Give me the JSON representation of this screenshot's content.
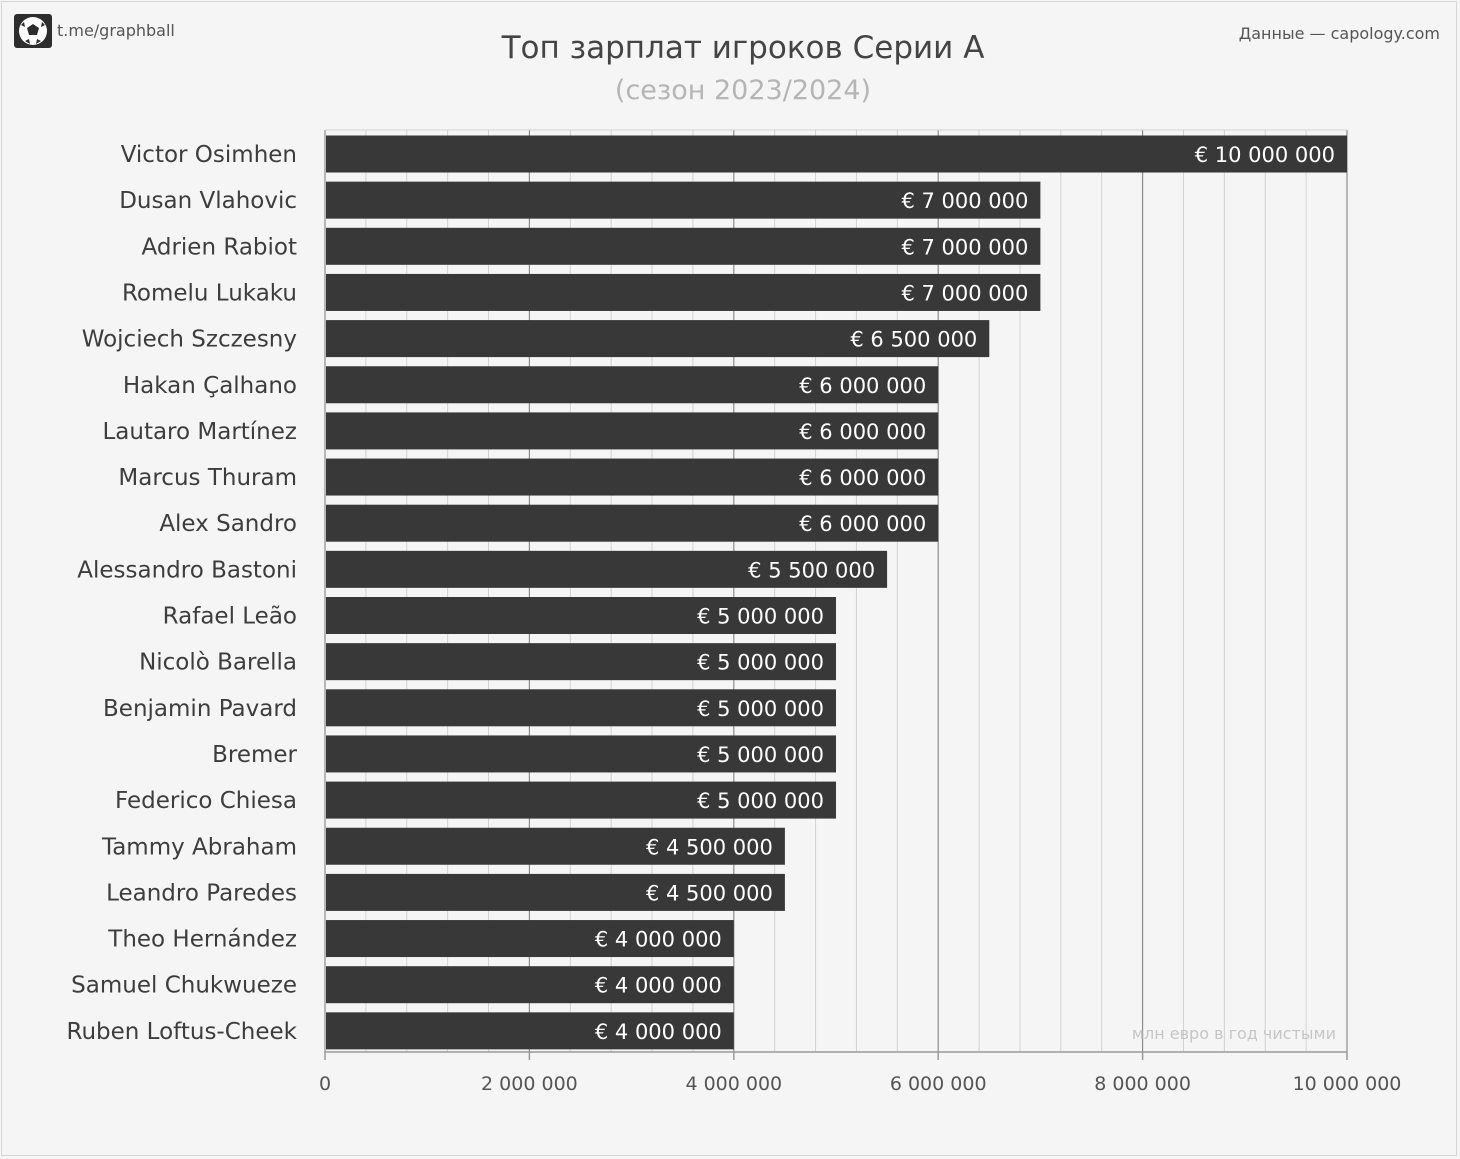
{
  "header": {
    "brand_link": "t.me/graphball",
    "source": "Данные — capology.com"
  },
  "chart_data": {
    "type": "bar",
    "orientation": "horizontal",
    "title": "Топ зарплат игроков Серии А",
    "subtitle": "(сезон 2023/2024)",
    "note": "млн евро в год чистыми",
    "categories": [
      "Victor Osimhen",
      "Dusan Vlahovic",
      "Adrien Rabiot",
      "Romelu Lukaku",
      "Wojciech Szczesny",
      "Hakan Çalhano",
      "Lautaro Martínez",
      "Marcus Thuram",
      "Alex Sandro",
      "Alessandro Bastoni",
      "Rafael Leão",
      "Nicolò Barella",
      "Benjamin Pavard",
      "Bremer",
      "Federico Chiesa",
      "Tammy Abraham",
      "Leandro Paredes",
      "Theo Hernández",
      "Samuel Chukwueze",
      "Ruben Loftus-Cheek"
    ],
    "values": [
      10000000,
      7000000,
      7000000,
      7000000,
      6500000,
      6000000,
      6000000,
      6000000,
      6000000,
      5500000,
      5000000,
      5000000,
      5000000,
      5000000,
      5000000,
      4500000,
      4500000,
      4000000,
      4000000,
      4000000
    ],
    "value_labels": [
      "€ 10 000 000",
      "€ 7 000 000",
      "€ 7 000 000",
      "€ 7 000 000",
      "€ 6 500 000",
      "€ 6 000 000",
      "€ 6 000 000",
      "€ 6 000 000",
      "€ 6 000 000",
      "€ 5 500 000",
      "€ 5 000 000",
      "€ 5 000 000",
      "€ 5 000 000",
      "€ 5 000 000",
      "€ 5 000 000",
      "€ 4 500 000",
      "€ 4 500 000",
      "€ 4 000 000",
      "€ 4 000 000",
      "€ 4 000 000"
    ],
    "xlim": [
      0,
      10000000
    ],
    "x_ticks": [
      0,
      2000000,
      4000000,
      6000000,
      8000000,
      10000000
    ],
    "x_tick_labels": [
      "0",
      "2 000 000",
      "4 000 000",
      "6 000 000",
      "8 000 000",
      "10 000 000"
    ],
    "minor_gridline_step": 400000,
    "grid": true,
    "legend": "none",
    "colors": {
      "bar": "#383838",
      "major_grid": "#8c8c8c",
      "minor_grid": "#d2d2d2",
      "background": "#f5f5f5"
    }
  }
}
